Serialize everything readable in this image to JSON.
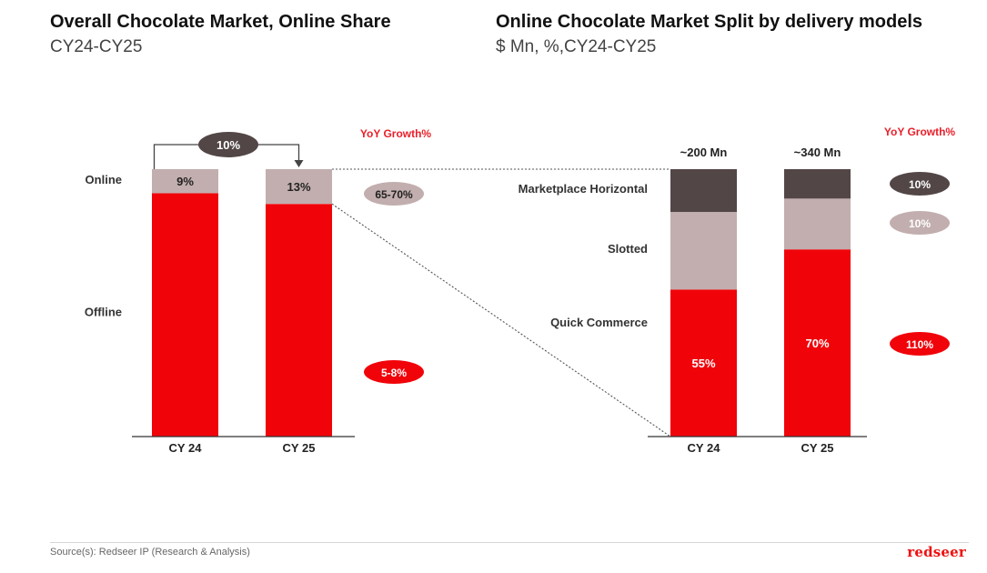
{
  "left": {
    "title": "Overall Chocolate Market, Online Share",
    "subtitle": "CY24-CY25"
  },
  "right": {
    "title": "Online Chocolate Market Split by delivery models",
    "subtitle": "$ Mn, %,CY24-CY25"
  },
  "footer": {
    "source": "Source(s): Redseer IP (Research & Analysis)",
    "logo": "redseer"
  },
  "colors": {
    "red": "#f0040a",
    "pink": "#c2aeae",
    "dark": "#524646",
    "arrow_badge": "#524646"
  },
  "chart_data": [
    {
      "type": "bar",
      "stacked": true,
      "categories": [
        "CY 24",
        "CY 25"
      ],
      "series": [
        {
          "name": "Offline",
          "values": [
            91,
            87
          ],
          "color": "#f0040a"
        },
        {
          "name": "Online",
          "values": [
            9,
            13
          ],
          "labels": [
            "9%",
            "13%"
          ],
          "color": "#c2aeae"
        }
      ],
      "ylim": [
        0,
        100
      ],
      "growth_arrow_label": "10%",
      "yoy_header": "YoY Growth%",
      "yoy": [
        {
          "series": "Online",
          "label": "65-70%",
          "color": "#c2aeae"
        },
        {
          "series": "Offline",
          "label": "5-8%",
          "color": "#f0040a"
        }
      ]
    },
    {
      "type": "bar",
      "stacked": true,
      "categories": [
        "CY 24",
        "CY 25"
      ],
      "totals": [
        "~200 Mn",
        "~340 Mn"
      ],
      "series": [
        {
          "name": "Quick Commerce",
          "values": [
            55,
            70
          ],
          "labels": [
            "55%",
            "70%"
          ],
          "color": "#f0040a"
        },
        {
          "name": "Slotted",
          "values": [
            29,
            19
          ],
          "color": "#c2aeae"
        },
        {
          "name": "Marketplace Horizontal",
          "values": [
            16,
            11
          ],
          "color": "#524646"
        }
      ],
      "ylim": [
        0,
        100
      ],
      "yoy_header": "YoY Growth%",
      "yoy": [
        {
          "series": "Marketplace Horizontal",
          "label": "10%",
          "color": "#524646"
        },
        {
          "series": "Slotted",
          "label": "10%",
          "color": "#c2aeae"
        },
        {
          "series": "Quick Commerce",
          "label": "110%",
          "color": "#f0040a"
        }
      ]
    }
  ]
}
